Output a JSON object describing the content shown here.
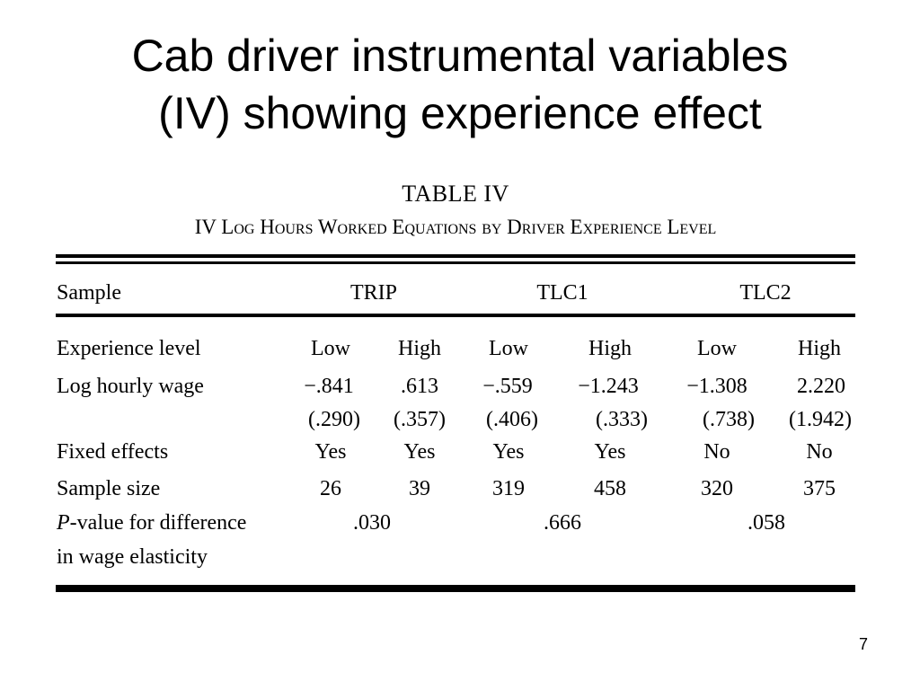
{
  "slide": {
    "title_line1": "Cab driver instrumental variables",
    "title_line2": "(IV) showing experience effect",
    "page_number": "7"
  },
  "table": {
    "number": "TABLE IV",
    "heading": "IV Log Hours Worked Equations by Driver Experience Level",
    "sample_label": "Sample",
    "samples": [
      "TRIP",
      "TLC1",
      "TLC2"
    ],
    "rows": {
      "experience": {
        "label": "Experience level",
        "values": [
          "Low",
          "High",
          "Low",
          "High",
          "Low",
          "High"
        ]
      },
      "wage": {
        "label": "Log hourly wage",
        "values": [
          "−.841",
          ".613",
          "−.559",
          "−1.243",
          "−1.308",
          "2.220"
        ],
        "std_errors": [
          "(.290)",
          "(.357)",
          "(.406)",
          "(.333)",
          "(.738)",
          "(1.942)"
        ]
      },
      "fixed_effects": {
        "label": "Fixed effects",
        "values": [
          "Yes",
          "Yes",
          "Yes",
          "Yes",
          "No",
          "No"
        ]
      },
      "sample_size": {
        "label": "Sample size",
        "values": [
          "26",
          "39",
          "319",
          "458",
          "320",
          "375"
        ]
      },
      "pvalue": {
        "label_italic": "P",
        "label_rest": "-value for difference",
        "label_line2": "in wage elasticity",
        "values": [
          ".030",
          ".666",
          ".058"
        ]
      }
    }
  }
}
